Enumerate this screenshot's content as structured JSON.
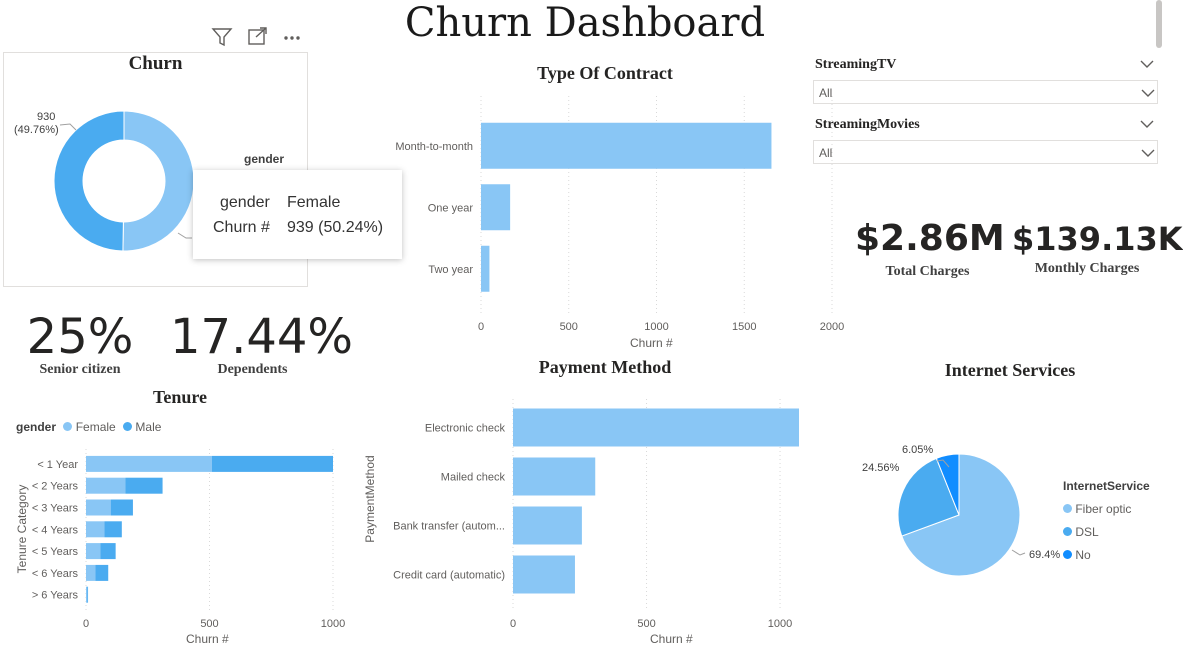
{
  "dashboard": {
    "title": "Churn Dashboard"
  },
  "colors": {
    "female": "#89c6f5",
    "male": "#4aabf0",
    "no": "#118dff",
    "frame": "#e1dfdd"
  },
  "churn_donut": {
    "title": "Churn",
    "legend_title": "gender",
    "label_value": "930",
    "label_pct": "(49.76%)",
    "tooltip": {
      "row1_key": "gender",
      "row1_val": "Female",
      "row2_key": "Churn #",
      "row2_val": "939 (50.24%)"
    },
    "header_icons": [
      "filter-icon",
      "focus-mode-icon",
      "more-options-icon"
    ]
  },
  "contract_chart": {
    "title": "Type Of Contract",
    "xlabel": "Churn #",
    "ticks": [
      "0",
      "500",
      "1000",
      "1500",
      "2000"
    ]
  },
  "slicers": [
    {
      "label": "StreamingTV",
      "value": "All"
    },
    {
      "label": "StreamingMovies",
      "value": "All"
    }
  ],
  "kpis": {
    "total_charges": {
      "value": "$2.86M",
      "label": "Total Charges"
    },
    "monthly_charges": {
      "value": "$139.13K",
      "label": "Monthly Charges"
    },
    "senior_citizen": {
      "value": "25%",
      "label": "Senior citizen"
    },
    "dependents": {
      "value": "17.44%",
      "label": "Dependents"
    }
  },
  "tenure_chart": {
    "title": "Tenure",
    "legend_title": "gender",
    "legend": [
      "Female",
      "Male"
    ],
    "ylabel": "Tenure Category",
    "xlabel": "Churn #",
    "ticks": [
      "0",
      "500",
      "1000"
    ]
  },
  "payment_chart": {
    "title": "Payment Method",
    "ylabel": "PaymentMethod",
    "xlabel": "Churn #",
    "ticks": [
      "0",
      "500",
      "1000"
    ]
  },
  "internet_chart": {
    "title": "Internet Services",
    "legend_title": "InternetService",
    "legend": [
      "Fiber optic",
      "DSL",
      "No"
    ],
    "labels": [
      "69.4%",
      "24.56%",
      "6.05%"
    ]
  },
  "chart_data": [
    {
      "type": "pie",
      "title": "Churn",
      "legend_title": "gender",
      "categories": [
        "Female",
        "Male"
      ],
      "values": [
        939,
        930
      ],
      "percent": [
        50.24,
        49.76
      ]
    },
    {
      "type": "bar",
      "title": "Type Of Contract",
      "categories": [
        "Month-to-month",
        "One year",
        "Two year"
      ],
      "values": [
        1655,
        166,
        48
      ],
      "xlabel": "Churn #",
      "xlim": [
        0,
        2000
      ]
    },
    {
      "type": "bar",
      "title": "Tenure",
      "categories": [
        "< 1 Year",
        "< 2 Years",
        "< 3 Years",
        "< 4 Years",
        "< 5 Years",
        "< 6 Years",
        "> 6 Years"
      ],
      "series": [
        {
          "name": "Female",
          "values": [
            510,
            160,
            100,
            75,
            58,
            38,
            5
          ]
        },
        {
          "name": "Male",
          "values": [
            490,
            150,
            90,
            70,
            62,
            52,
            3
          ]
        }
      ],
      "xlabel": "Churn #",
      "ylabel": "Tenure Category",
      "xlim": [
        0,
        1000
      ],
      "stacked": true
    },
    {
      "type": "bar",
      "title": "Payment Method",
      "categories": [
        "Electronic check",
        "Mailed check",
        "Bank transfer (autom...",
        "Credit card (automatic)"
      ],
      "values": [
        1071,
        308,
        258,
        232
      ],
      "xlabel": "Churn #",
      "ylabel": "PaymentMethod",
      "xlim": [
        0,
        1071
      ]
    },
    {
      "type": "pie",
      "title": "Internet Services",
      "legend_title": "InternetService",
      "categories": [
        "Fiber optic",
        "DSL",
        "No"
      ],
      "values": [
        69.4,
        24.56,
        6.05
      ]
    }
  ]
}
